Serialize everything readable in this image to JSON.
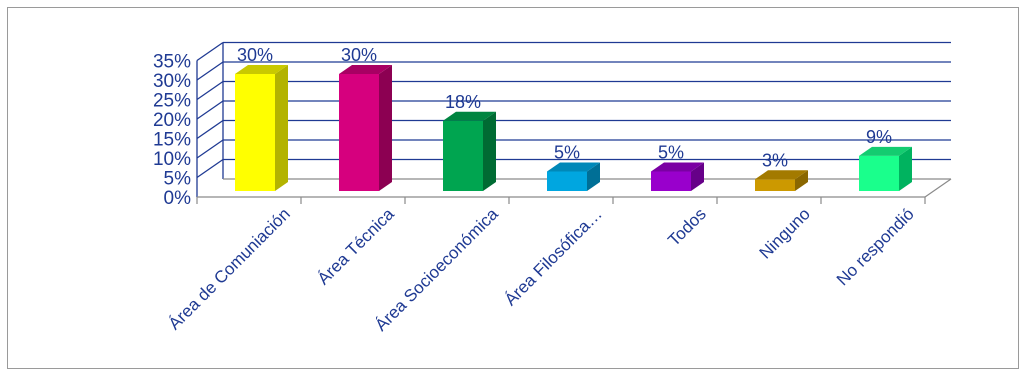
{
  "chart_data": {
    "type": "bar",
    "title": "",
    "xlabel": "",
    "ylabel": "",
    "categories": [
      "Área de Comuniación",
      "Área Técnica",
      "Área Socioeconómica",
      "Área Filosófica…",
      "Todos",
      "Ninguno",
      "No respondió"
    ],
    "values": [
      30,
      30,
      18,
      5,
      5,
      3,
      9
    ],
    "data_labels": [
      "30%",
      "30%",
      "18%",
      "5%",
      "5%",
      "3%",
      "9%"
    ],
    "y_ticks": [
      "0%",
      "5%",
      "10%",
      "15%",
      "20%",
      "25%",
      "30%",
      "35%"
    ],
    "ylim": [
      0,
      35
    ],
    "grid": true,
    "legend": "none",
    "style": "3d-column",
    "colors": [
      "#ffff00",
      "#d6007e",
      "#00a550",
      "#00a6e0",
      "#9900cc",
      "#cc9900",
      "#1aff8c"
    ],
    "side_colors": [
      "#b3b300",
      "#8c0052",
      "#006b33",
      "#006f96",
      "#660088",
      "#8a6700",
      "#00b35f"
    ],
    "top_colors": [
      "#c9c900",
      "#a80063",
      "#008540",
      "#0088b8",
      "#7a00a3",
      "#a37a00",
      "#14cc70"
    ],
    "axis_color": "#1f3a93"
  }
}
